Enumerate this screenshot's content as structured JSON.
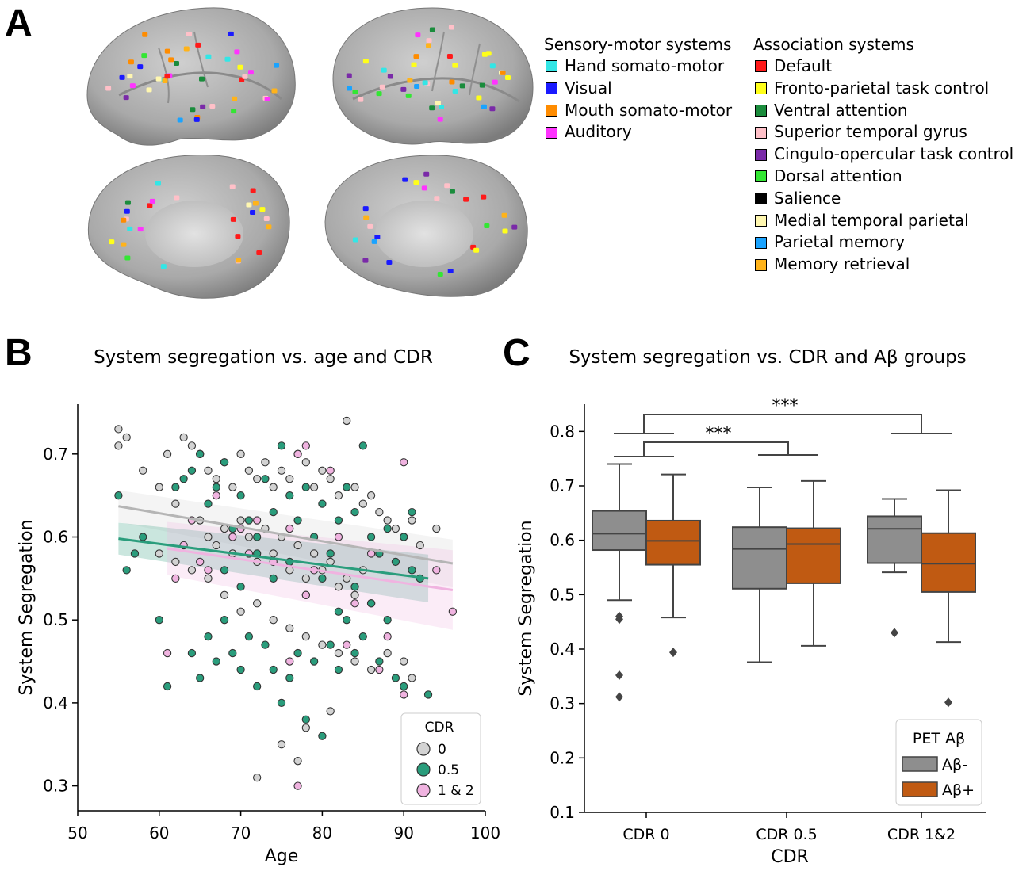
{
  "panels": {
    "a": "A",
    "b": "B",
    "c": "C"
  },
  "brain_legend": {
    "sensory_title": "Sensory-motor systems",
    "association_title": "Association systems",
    "sensory": [
      {
        "label": "Hand somato-motor",
        "color": "#33e6e6"
      },
      {
        "label": "Visual",
        "color": "#1a1aff"
      },
      {
        "label": "Mouth somato-motor",
        "color": "#ff8c00"
      },
      {
        "label": "Auditory",
        "color": "#ff33ff"
      }
    ],
    "association": [
      {
        "label": "Default",
        "color": "#ff1a1a"
      },
      {
        "label": "Fronto-parietal task control",
        "color": "#ffff1a"
      },
      {
        "label": "Ventral attention",
        "color": "#1a8c3c"
      },
      {
        "label": "Superior temporal gyrus",
        "color": "#ffc0c8"
      },
      {
        "label": "Cingulo-opercular task control",
        "color": "#7a2aa8"
      },
      {
        "label": "Dorsal attention",
        "color": "#33e633"
      },
      {
        "label": "Salience",
        "color": "#000000"
      },
      {
        "label": "Medial temporal parietal",
        "color": "#fff7b0"
      },
      {
        "label": "Parietal memory",
        "color": "#1aa3ff"
      },
      {
        "label": "Memory retrieval",
        "color": "#ffb31a"
      }
    ]
  },
  "chart_data": [
    {
      "type": "scatter",
      "title": "System segregation vs. age and CDR",
      "xlabel": "Age",
      "ylabel": "System Segregation",
      "xlim": [
        50,
        100
      ],
      "ylim": [
        0.27,
        0.76
      ],
      "xticks": [
        50,
        60,
        70,
        80,
        90,
        100
      ],
      "yticks": [
        0.3,
        0.4,
        0.5,
        0.6,
        0.7
      ],
      "legend": {
        "title": "CDR",
        "position": "bottom-right"
      },
      "series": [
        {
          "name": "0",
          "color": "#d3d3d3",
          "fit": {
            "x": [
              55,
              96
            ],
            "y": [
              0.637,
              0.568
            ]
          },
          "points": [
            [
              55,
              0.73
            ],
            [
              56,
              0.72
            ],
            [
              55,
              0.71
            ],
            [
              58,
              0.68
            ],
            [
              60,
              0.66
            ],
            [
              61,
              0.7
            ],
            [
              62,
              0.64
            ],
            [
              63,
              0.72
            ],
            [
              64,
              0.71
            ],
            [
              65,
              0.7
            ],
            [
              66,
              0.68
            ],
            [
              67,
              0.67
            ],
            [
              68,
              0.69
            ],
            [
              69,
              0.66
            ],
            [
              70,
              0.7
            ],
            [
              71,
              0.68
            ],
            [
              72,
              0.67
            ],
            [
              73,
              0.69
            ],
            [
              74,
              0.66
            ],
            [
              75,
              0.68
            ],
            [
              76,
              0.67
            ],
            [
              77,
              0.7
            ],
            [
              78,
              0.69
            ],
            [
              79,
              0.66
            ],
            [
              80,
              0.68
            ],
            [
              81,
              0.67
            ],
            [
              82,
              0.65
            ],
            [
              83,
              0.74
            ],
            [
              84,
              0.66
            ],
            [
              85,
              0.64
            ],
            [
              86,
              0.65
            ],
            [
              87,
              0.63
            ],
            [
              88,
              0.62
            ],
            [
              89,
              0.61
            ],
            [
              90,
              0.6
            ],
            [
              91,
              0.62
            ],
            [
              92,
              0.59
            ],
            [
              94,
              0.61
            ],
            [
              65,
              0.62
            ],
            [
              66,
              0.6
            ],
            [
              67,
              0.59
            ],
            [
              68,
              0.61
            ],
            [
              69,
              0.58
            ],
            [
              70,
              0.62
            ],
            [
              71,
              0.6
            ],
            [
              72,
              0.57
            ],
            [
              73,
              0.61
            ],
            [
              74,
              0.58
            ],
            [
              75,
              0.6
            ],
            [
              76,
              0.56
            ],
            [
              77,
              0.59
            ],
            [
              78,
              0.55
            ],
            [
              79,
              0.58
            ],
            [
              80,
              0.56
            ],
            [
              81,
              0.57
            ],
            [
              82,
              0.54
            ],
            [
              83,
              0.55
            ],
            [
              84,
              0.53
            ],
            [
              85,
              0.56
            ],
            [
              86,
              0.52
            ],
            [
              68,
              0.53
            ],
            [
              70,
              0.51
            ],
            [
              72,
              0.52
            ],
            [
              74,
              0.5
            ],
            [
              76,
              0.49
            ],
            [
              78,
              0.48
            ],
            [
              80,
              0.47
            ],
            [
              82,
              0.46
            ],
            [
              84,
              0.45
            ],
            [
              86,
              0.44
            ],
            [
              88,
              0.46
            ],
            [
              90,
              0.45
            ],
            [
              66,
              0.55
            ],
            [
              64,
              0.56
            ],
            [
              62,
              0.57
            ],
            [
              60,
              0.58
            ],
            [
              72,
              0.31
            ],
            [
              75,
              0.35
            ],
            [
              77,
              0.33
            ],
            [
              78,
              0.37
            ],
            [
              81,
              0.39
            ],
            [
              91,
              0.43
            ]
          ]
        },
        {
          "name": "0.5",
          "color": "#2a9d7c",
          "fit": {
            "x": [
              55,
              93
            ],
            "y": [
              0.598,
              0.55
            ]
          },
          "points": [
            [
              55,
              0.65
            ],
            [
              56,
              0.56
            ],
            [
              57,
              0.58
            ],
            [
              58,
              0.6
            ],
            [
              60,
              0.5
            ],
            [
              61,
              0.42
            ],
            [
              62,
              0.66
            ],
            [
              63,
              0.67
            ],
            [
              64,
              0.68
            ],
            [
              65,
              0.7
            ],
            [
              66,
              0.64
            ],
            [
              67,
              0.66
            ],
            [
              68,
              0.69
            ],
            [
              69,
              0.61
            ],
            [
              70,
              0.65
            ],
            [
              71,
              0.62
            ],
            [
              72,
              0.6
            ],
            [
              73,
              0.67
            ],
            [
              74,
              0.63
            ],
            [
              75,
              0.71
            ],
            [
              76,
              0.65
            ],
            [
              77,
              0.62
            ],
            [
              78,
              0.66
            ],
            [
              79,
              0.6
            ],
            [
              80,
              0.64
            ],
            [
              81,
              0.58
            ],
            [
              82,
              0.62
            ],
            [
              83,
              0.66
            ],
            [
              84,
              0.63
            ],
            [
              85,
              0.71
            ],
            [
              86,
              0.6
            ],
            [
              87,
              0.58
            ],
            [
              88,
              0.61
            ],
            [
              89,
              0.57
            ],
            [
              90,
              0.6
            ],
            [
              91,
              0.63
            ],
            [
              92,
              0.55
            ],
            [
              93,
              0.41
            ],
            [
              64,
              0.46
            ],
            [
              65,
              0.43
            ],
            [
              66,
              0.48
            ],
            [
              67,
              0.45
            ],
            [
              68,
              0.5
            ],
            [
              69,
              0.46
            ],
            [
              70,
              0.44
            ],
            [
              71,
              0.48
            ],
            [
              72,
              0.42
            ],
            [
              73,
              0.47
            ],
            [
              74,
              0.44
            ],
            [
              75,
              0.4
            ],
            [
              76,
              0.43
            ],
            [
              77,
              0.46
            ],
            [
              78,
              0.38
            ],
            [
              79,
              0.45
            ],
            [
              80,
              0.36
            ],
            [
              81,
              0.47
            ],
            [
              82,
              0.44
            ],
            [
              83,
              0.5
            ],
            [
              84,
              0.46
            ],
            [
              85,
              0.48
            ],
            [
              86,
              0.52
            ],
            [
              87,
              0.45
            ],
            [
              88,
              0.5
            ],
            [
              89,
              0.43
            ],
            [
              90,
              0.42
            ],
            [
              91,
              0.56
            ],
            [
              68,
              0.56
            ],
            [
              70,
              0.54
            ],
            [
              72,
              0.58
            ],
            [
              74,
              0.55
            ],
            [
              76,
              0.57
            ],
            [
              78,
              0.53
            ],
            [
              80,
              0.55
            ],
            [
              82,
              0.51
            ],
            [
              84,
              0.54
            ]
          ]
        },
        {
          "name": "1 & 2",
          "color": "#f0b3e0",
          "fit": {
            "x": [
              61,
              96
            ],
            "y": [
              0.586,
              0.536
            ]
          },
          "points": [
            [
              61,
              0.46
            ],
            [
              62,
              0.55
            ],
            [
              63,
              0.59
            ],
            [
              64,
              0.62
            ],
            [
              65,
              0.57
            ],
            [
              67,
              0.65
            ],
            [
              69,
              0.6
            ],
            [
              71,
              0.58
            ],
            [
              72,
              0.62
            ],
            [
              74,
              0.57
            ],
            [
              76,
              0.61
            ],
            [
              77,
              0.7
            ],
            [
              78,
              0.71
            ],
            [
              79,
              0.56
            ],
            [
              81,
              0.68
            ],
            [
              82,
              0.6
            ],
            [
              83,
              0.47
            ],
            [
              84,
              0.52
            ],
            [
              86,
              0.58
            ],
            [
              87,
              0.44
            ],
            [
              88,
              0.48
            ],
            [
              90,
              0.41
            ],
            [
              90,
              0.69
            ],
            [
              94,
              0.56
            ],
            [
              96,
              0.51
            ],
            [
              77,
              0.3
            ],
            [
              76,
              0.45
            ],
            [
              78,
              0.53
            ],
            [
              70,
              0.61
            ],
            [
              66,
              0.56
            ]
          ]
        }
      ]
    },
    {
      "type": "box",
      "title": "System segregation vs. CDR and Aβ groups",
      "xlabel": "CDR",
      "ylabel": "System Segregation",
      "categories": [
        "CDR 0",
        "CDR 0.5",
        "CDR 1&2"
      ],
      "ylim": [
        0.1,
        0.85
      ],
      "yticks": [
        0.1,
        0.2,
        0.3,
        0.4,
        0.5,
        0.6,
        0.7,
        0.8
      ],
      "legend": {
        "title": "PET Aβ",
        "position": "bottom-right"
      },
      "significance": [
        "***",
        "***"
      ],
      "series": [
        {
          "name": "Aβ-",
          "color": "#8e8e8e",
          "boxes": [
            {
              "wlo": 0.49,
              "q1": 0.582,
              "med": 0.612,
              "q3": 0.654,
              "whi": 0.74,
              "outliers": [
                0.46,
                0.455,
                0.352,
                0.312
              ]
            },
            {
              "wlo": 0.376,
              "q1": 0.511,
              "med": 0.584,
              "q3": 0.624,
              "whi": 0.697,
              "outliers": []
            },
            {
              "wlo": 0.541,
              "q1": 0.558,
              "med": 0.621,
              "q3": 0.644,
              "whi": 0.676,
              "outliers": [
                0.43
              ]
            }
          ]
        },
        {
          "name": "Aβ+",
          "color": "#c05a12",
          "boxes": [
            {
              "wlo": 0.458,
              "q1": 0.555,
              "med": 0.599,
              "q3": 0.636,
              "whi": 0.721,
              "outliers": [
                0.394
              ]
            },
            {
              "wlo": 0.406,
              "q1": 0.521,
              "med": 0.593,
              "q3": 0.622,
              "whi": 0.709,
              "outliers": []
            },
            {
              "wlo": 0.413,
              "q1": 0.505,
              "med": 0.557,
              "q3": 0.613,
              "whi": 0.692,
              "outliers": [
                0.302
              ]
            }
          ]
        }
      ]
    }
  ]
}
